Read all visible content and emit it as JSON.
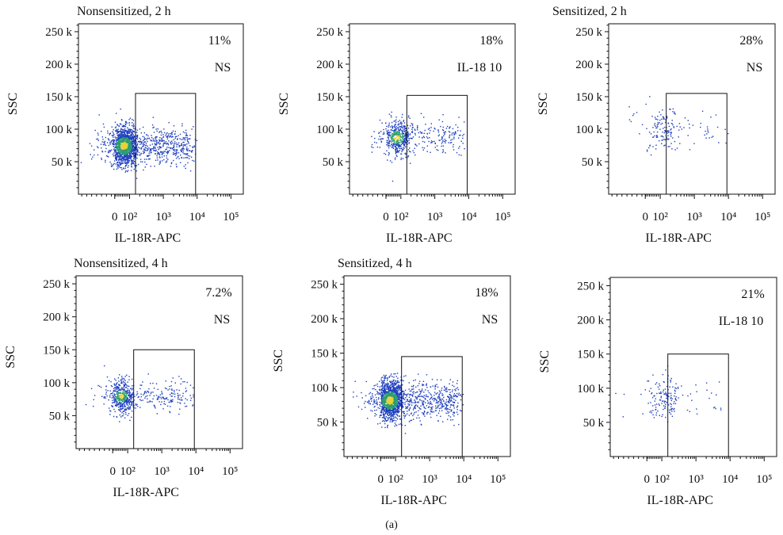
{
  "figure_caption": "(a)",
  "chart_data": [
    {
      "type": "scatter",
      "title": "Nonsensitized, 2 h",
      "xlabel": "IL-18R-APC",
      "ylabel": "SSC",
      "x_scale": "biexponential",
      "x_ticks": [
        "0",
        "10²",
        "10³",
        "10⁴",
        "10⁵"
      ],
      "y_ticks": [
        "50 k",
        "100 k",
        "150 k",
        "200 k",
        "250 k"
      ],
      "ylim": [
        0,
        262144
      ],
      "gate": {
        "x_range": [
          150,
          9000
        ],
        "y_range": [
          0,
          155000
        ]
      },
      "gate_percent": "11%",
      "annotation": "NS",
      "population": {
        "center_x": 60,
        "center_y": 75000,
        "spread_y": 15000,
        "event_density": "high"
      }
    },
    {
      "type": "scatter",
      "title": "",
      "xlabel": "IL-18R-APC",
      "ylabel": "SSC",
      "x_scale": "biexponential",
      "x_ticks": [
        "0",
        "10²",
        "10³",
        "10⁴",
        "10⁵"
      ],
      "y_ticks": [
        "50 k",
        "100 k",
        "150 k",
        "200 k",
        "250 k"
      ],
      "ylim": [
        0,
        262144
      ],
      "gate": {
        "x_range": [
          150,
          9000
        ],
        "y_range": [
          0,
          152000
        ]
      },
      "gate_percent": "18%",
      "annotation": "IL-18 10",
      "population": {
        "center_x": 70,
        "center_y": 88000,
        "spread_y": 14000,
        "event_density": "medium"
      }
    },
    {
      "type": "scatter",
      "title": "Sensitized, 2 h",
      "xlabel": "IL-18R-APC",
      "ylabel": "SSC",
      "x_scale": "biexponential",
      "x_ticks": [
        "0",
        "10²",
        "10³",
        "10⁴",
        "10⁵"
      ],
      "y_ticks": [
        "50 k",
        "100 k",
        "150 k",
        "200 k",
        "250 k"
      ],
      "ylim": [
        0,
        262144
      ],
      "gate": {
        "x_range": [
          150,
          9000
        ],
        "y_range": [
          0,
          155000
        ]
      },
      "gate_percent": "28%",
      "annotation": "NS",
      "population": {
        "center_x": 120,
        "center_y": 100000,
        "spread_y": 18000,
        "event_density": "low"
      }
    },
    {
      "type": "scatter",
      "title": "Nonsensitized, 4 h",
      "xlabel": "IL-18R-APC",
      "ylabel": "SSC",
      "x_scale": "biexponential",
      "x_ticks": [
        "0",
        "10²",
        "10³",
        "10⁴",
        "10⁵"
      ],
      "y_ticks": [
        "50 k",
        "100 k",
        "150 k",
        "200 k",
        "250 k"
      ],
      "ylim": [
        0,
        262144
      ],
      "gate": {
        "x_range": [
          150,
          9000
        ],
        "y_range": [
          0,
          150000
        ]
      },
      "gate_percent": "7.2%",
      "annotation": "NS",
      "population": {
        "center_x": 55,
        "center_y": 80000,
        "spread_y": 13000,
        "event_density": "medium"
      }
    },
    {
      "type": "scatter",
      "title": "Sensitized, 4 h",
      "xlabel": "IL-18R-APC",
      "ylabel": "SSC",
      "x_scale": "biexponential",
      "x_ticks": [
        "0",
        "10²",
        "10³",
        "10⁴",
        "10⁵"
      ],
      "y_ticks": [
        "50 k",
        "100 k",
        "150 k",
        "200 k",
        "250 k"
      ],
      "ylim": [
        0,
        262144
      ],
      "gate": {
        "x_range": [
          150,
          9000
        ],
        "y_range": [
          0,
          145000
        ]
      },
      "gate_percent": "18%",
      "annotation": "NS",
      "population": {
        "center_x": 60,
        "center_y": 82000,
        "spread_y": 14000,
        "event_density": "high"
      }
    },
    {
      "type": "scatter",
      "title": "",
      "xlabel": "IL-18R-APC",
      "ylabel": "SSC",
      "x_scale": "biexponential",
      "x_ticks": [
        "0",
        "10²",
        "10³",
        "10⁴",
        "10⁵"
      ],
      "y_ticks": [
        "50 k",
        "100 k",
        "150 k",
        "200 k",
        "250 k"
      ],
      "ylim": [
        0,
        262144
      ],
      "gate": {
        "x_range": [
          150,
          9000
        ],
        "y_range": [
          0,
          150000
        ]
      },
      "gate_percent": "21%",
      "annotation": "IL-18 10",
      "population": {
        "center_x": 110,
        "center_y": 88000,
        "spread_y": 17000,
        "event_density": "low"
      }
    }
  ],
  "colors": {
    "low": "#1f3fbf",
    "mid": "#2a9d6f",
    "high": "#e8d23a",
    "axis": "#111111"
  }
}
